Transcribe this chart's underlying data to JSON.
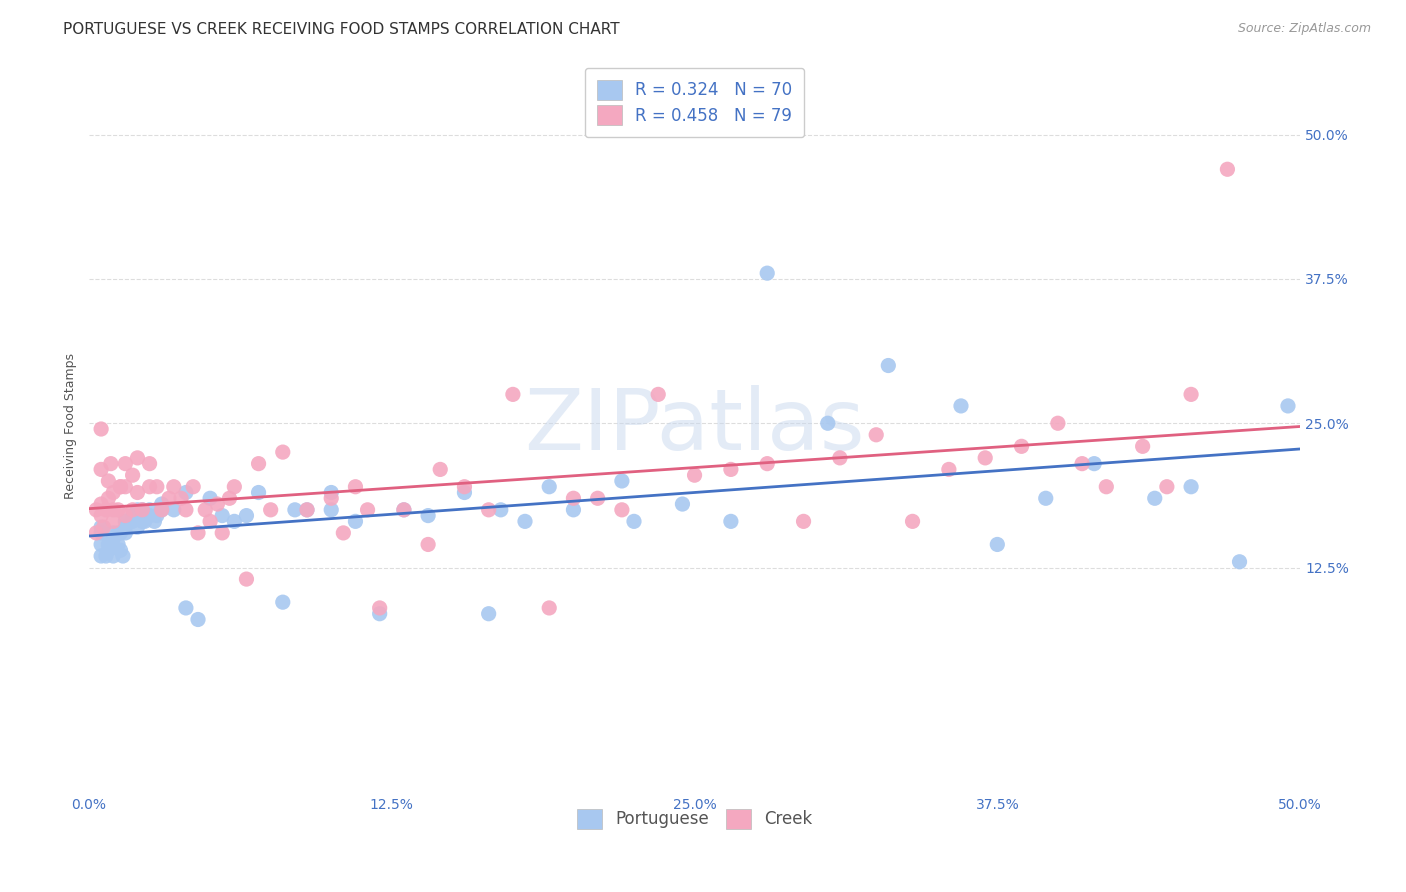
{
  "title": "PORTUGUESE VS CREEK RECEIVING FOOD STAMPS CORRELATION CHART",
  "source": "Source: ZipAtlas.com",
  "ylabel": "Receiving Food Stamps",
  "watermark": "ZIPatlas",
  "xlim": [
    0.0,
    0.5
  ],
  "ylim": [
    -0.07,
    0.565
  ],
  "xtick_vals": [
    0.0,
    0.125,
    0.25,
    0.375,
    0.5
  ],
  "xtick_labels": [
    "0.0%",
    "12.5%",
    "25.0%",
    "37.5%",
    "50.0%"
  ],
  "ytick_vals": [
    0.125,
    0.25,
    0.375,
    0.5
  ],
  "ytick_labels": [
    "12.5%",
    "25.0%",
    "37.5%",
    "50.0%"
  ],
  "portuguese_color": "#a8c8f0",
  "creek_color": "#f4a8c0",
  "portuguese_line_color": "#4472c4",
  "creek_line_color": "#e06080",
  "R_portuguese": 0.324,
  "N_portuguese": 70,
  "R_creek": 0.458,
  "N_creek": 79,
  "portuguese_x": [
    0.005,
    0.005,
    0.005,
    0.005,
    0.007,
    0.008,
    0.008,
    0.01,
    0.01,
    0.01,
    0.012,
    0.012,
    0.013,
    0.013,
    0.014,
    0.015,
    0.015,
    0.015,
    0.018,
    0.018,
    0.02,
    0.02,
    0.022,
    0.022,
    0.023,
    0.025,
    0.025,
    0.027,
    0.028,
    0.03,
    0.03,
    0.035,
    0.04,
    0.04,
    0.045,
    0.05,
    0.055,
    0.06,
    0.065,
    0.07,
    0.08,
    0.085,
    0.09,
    0.1,
    0.1,
    0.11,
    0.12,
    0.13,
    0.14,
    0.155,
    0.165,
    0.17,
    0.18,
    0.19,
    0.2,
    0.22,
    0.225,
    0.245,
    0.265,
    0.28,
    0.305,
    0.33,
    0.36,
    0.375,
    0.395,
    0.415,
    0.44,
    0.455,
    0.475,
    0.495
  ],
  "portuguese_y": [
    0.16,
    0.155,
    0.145,
    0.135,
    0.135,
    0.14,
    0.145,
    0.15,
    0.155,
    0.135,
    0.145,
    0.155,
    0.155,
    0.14,
    0.135,
    0.16,
    0.155,
    0.165,
    0.17,
    0.165,
    0.175,
    0.16,
    0.175,
    0.165,
    0.165,
    0.17,
    0.175,
    0.165,
    0.17,
    0.175,
    0.18,
    0.175,
    0.19,
    0.09,
    0.08,
    0.185,
    0.17,
    0.165,
    0.17,
    0.19,
    0.095,
    0.175,
    0.175,
    0.19,
    0.175,
    0.165,
    0.085,
    0.175,
    0.17,
    0.19,
    0.085,
    0.175,
    0.165,
    0.195,
    0.175,
    0.2,
    0.165,
    0.18,
    0.165,
    0.38,
    0.25,
    0.3,
    0.265,
    0.145,
    0.185,
    0.215,
    0.185,
    0.195,
    0.13,
    0.265
  ],
  "creek_x": [
    0.003,
    0.003,
    0.005,
    0.005,
    0.005,
    0.005,
    0.006,
    0.007,
    0.008,
    0.008,
    0.009,
    0.01,
    0.01,
    0.01,
    0.012,
    0.013,
    0.013,
    0.015,
    0.015,
    0.015,
    0.018,
    0.018,
    0.02,
    0.02,
    0.022,
    0.025,
    0.025,
    0.028,
    0.03,
    0.033,
    0.035,
    0.038,
    0.04,
    0.043,
    0.045,
    0.048,
    0.05,
    0.053,
    0.055,
    0.058,
    0.06,
    0.065,
    0.07,
    0.075,
    0.08,
    0.09,
    0.1,
    0.105,
    0.11,
    0.115,
    0.12,
    0.13,
    0.14,
    0.145,
    0.155,
    0.165,
    0.175,
    0.19,
    0.2,
    0.21,
    0.22,
    0.235,
    0.25,
    0.265,
    0.28,
    0.295,
    0.31,
    0.325,
    0.34,
    0.355,
    0.37,
    0.385,
    0.4,
    0.41,
    0.42,
    0.435,
    0.445,
    0.455,
    0.47
  ],
  "creek_y": [
    0.155,
    0.175,
    0.17,
    0.18,
    0.21,
    0.245,
    0.16,
    0.175,
    0.185,
    0.2,
    0.215,
    0.165,
    0.175,
    0.19,
    0.175,
    0.195,
    0.195,
    0.17,
    0.195,
    0.215,
    0.175,
    0.205,
    0.19,
    0.22,
    0.175,
    0.195,
    0.215,
    0.195,
    0.175,
    0.185,
    0.195,
    0.185,
    0.175,
    0.195,
    0.155,
    0.175,
    0.165,
    0.18,
    0.155,
    0.185,
    0.195,
    0.115,
    0.215,
    0.175,
    0.225,
    0.175,
    0.185,
    0.155,
    0.195,
    0.175,
    0.09,
    0.175,
    0.145,
    0.21,
    0.195,
    0.175,
    0.275,
    0.09,
    0.185,
    0.185,
    0.175,
    0.275,
    0.205,
    0.21,
    0.215,
    0.165,
    0.22,
    0.24,
    0.165,
    0.21,
    0.22,
    0.23,
    0.25,
    0.215,
    0.195,
    0.23,
    0.195,
    0.275,
    0.47
  ],
  "background_color": "#ffffff",
  "grid_color": "#dddddd",
  "title_fontsize": 11,
  "axis_label_fontsize": 9,
  "tick_fontsize": 10,
  "legend_fontsize": 12
}
